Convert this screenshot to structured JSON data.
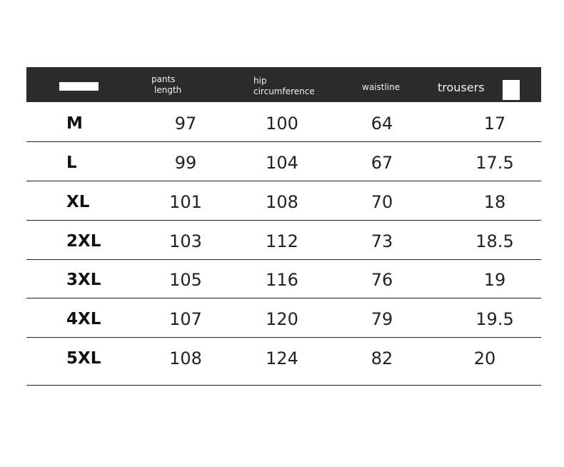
{
  "header": {
    "pants_length": [
      "pants",
      "length"
    ],
    "hip_circumference": [
      "hip",
      "circumference"
    ],
    "waistline": "waistline",
    "trousers": "trousers"
  },
  "rows": [
    {
      "size": "M",
      "pants_length": "97",
      "hip": "100",
      "waist": "64",
      "trousers": "17"
    },
    {
      "size": "L",
      "pants_length": "99",
      "hip": "104",
      "waist": "67",
      "trousers": "17.5"
    },
    {
      "size": "XL",
      "pants_length": "101",
      "hip": "108",
      "waist": "70",
      "trousers": "18"
    },
    {
      "size": "2XL",
      "pants_length": "103",
      "hip": "112",
      "waist": "73",
      "trousers": "18.5"
    },
    {
      "size": "3XL",
      "pants_length": "105",
      "hip": "116",
      "waist": "76",
      "trousers": "19"
    },
    {
      "size": "4XL",
      "pants_length": "107",
      "hip": "120",
      "waist": "79",
      "trousers": "19.5"
    },
    {
      "size": "5XL",
      "pants_length": "108",
      "hip": "124",
      "waist": "82",
      "trousers": "20"
    }
  ]
}
